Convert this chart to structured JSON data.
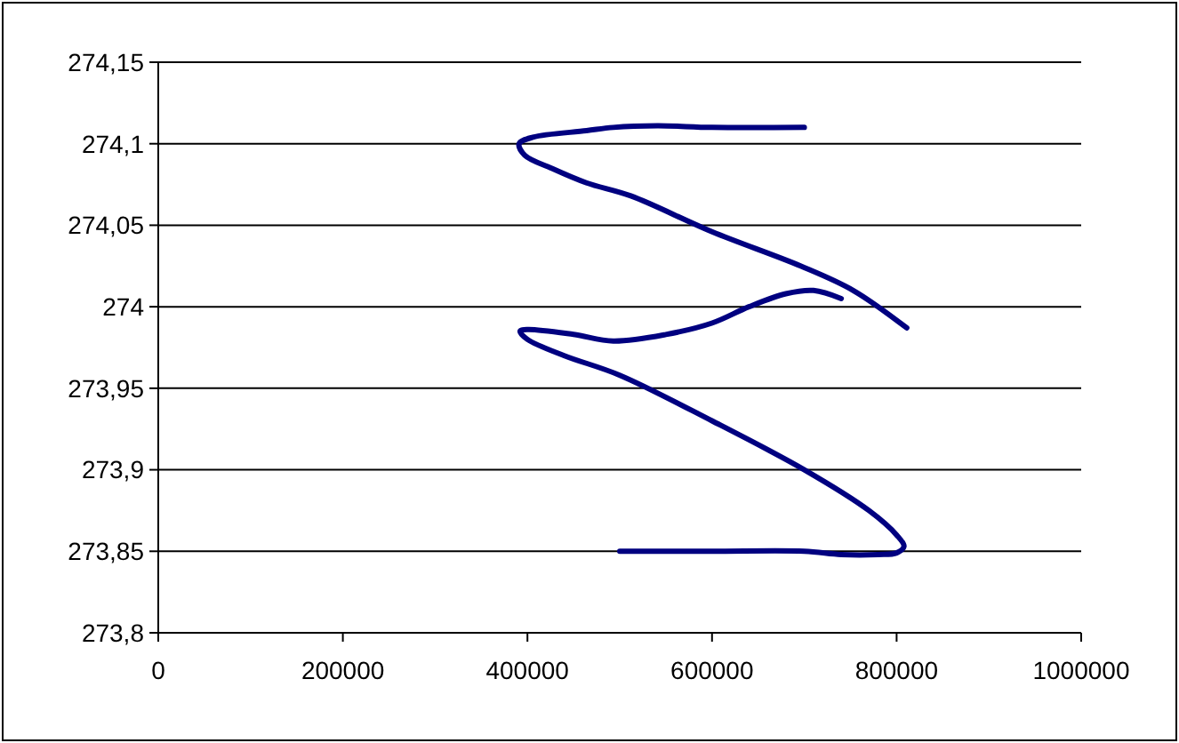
{
  "chart_data": {
    "type": "line",
    "grid": "y",
    "xlim": [
      0,
      1000000
    ],
    "xticks": [
      0,
      200000,
      400000,
      600000,
      800000,
      1000000
    ],
    "ylim": [
      273.8,
      274.15
    ],
    "yticks": [
      {
        "value": 273.8,
        "label": "273,8"
      },
      {
        "value": 273.85,
        "label": "273,85"
      },
      {
        "value": 273.9,
        "label": "273,9"
      },
      {
        "value": 273.95,
        "label": "273,95"
      },
      {
        "value": 274,
        "label": "274"
      },
      {
        "value": 274.05,
        "label": "274,05"
      },
      {
        "value": 274.1,
        "label": "274,1"
      },
      {
        "value": 274.15,
        "label": "274,15"
      }
    ],
    "series": [
      {
        "color": "#000080",
        "x": [
          500000,
          600000,
          700000,
          740000,
          780000,
          800000,
          808000,
          800000,
          770000,
          700000,
          600000,
          500000,
          440000,
          400000,
          392000,
          400000,
          450000,
          493000,
          550000,
          600000,
          640000,
          680000,
          710000,
          740000
        ],
        "values": [
          273.85,
          273.85,
          273.85,
          273.848,
          273.848,
          273.849,
          273.853,
          273.86,
          273.875,
          273.9,
          273.93,
          273.958,
          273.97,
          273.98,
          273.985,
          273.986,
          273.983,
          273.979,
          273.983,
          273.99,
          274.0,
          274.008,
          274.01,
          274.005
        ]
      },
      {
        "color": "#000080",
        "x": [
          700000,
          600000,
          541000,
          493000,
          464000,
          406000,
          391000,
          397000,
          426000,
          464000,
          512000,
          600000,
          696000,
          753000,
          811000
        ],
        "values": [
          274.11,
          274.11,
          274.111,
          274.11,
          274.108,
          274.104,
          274.1,
          274.093,
          274.085,
          274.076,
          274.068,
          274.046,
          274.025,
          274.01,
          273.987
        ]
      }
    ]
  }
}
